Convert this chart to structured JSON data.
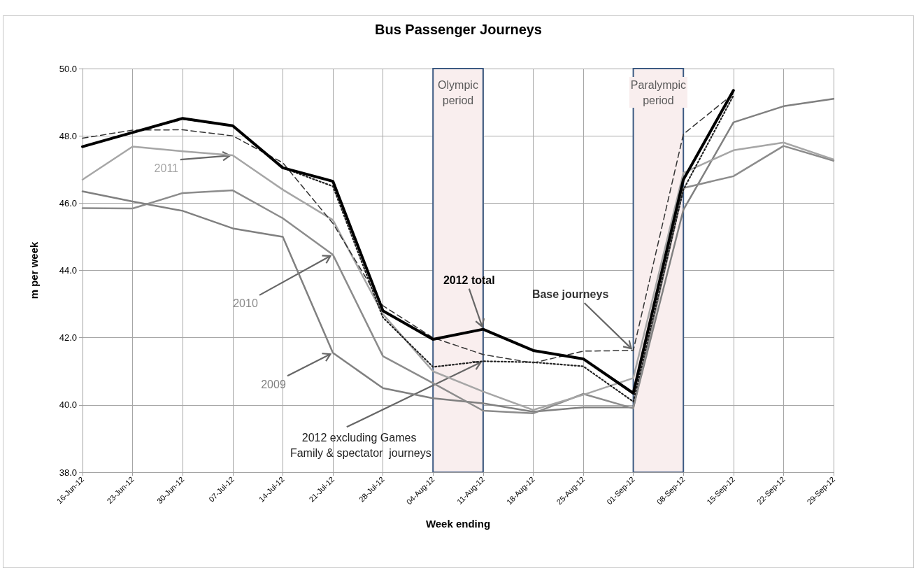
{
  "chart_data": {
    "type": "line",
    "title": "Bus Passenger Journeys",
    "xlabel": "Week ending",
    "ylabel": "m per week",
    "categories": [
      "16-Jun-12",
      "23-Jun-12",
      "30-Jun-12",
      "07-Jul-12",
      "14-Jul-12",
      "21-Jul-12",
      "28-Jul-12",
      "04-Aug-12",
      "11-Aug-12",
      "18-Aug-12",
      "25-Aug-12",
      "01-Sep-12",
      "08-Sep-12",
      "15-Sep-12",
      "22-Sep-12",
      "29-Sep-12"
    ],
    "series": [
      {
        "name": "2012 total",
        "color": "#000000",
        "line_style": "solid",
        "values": [
          47.68,
          48.1,
          48.52,
          48.3,
          47.05,
          46.65,
          42.8,
          41.95,
          42.25,
          41.62,
          41.37,
          40.35,
          46.7,
          49.35,
          null,
          null
        ]
      },
      {
        "name": "Base journeys",
        "color": "#333333",
        "line_style": "dashed",
        "values": [
          47.93,
          48.17,
          48.18,
          48.0,
          47.2,
          45.4,
          42.95,
          42.0,
          41.5,
          41.25,
          41.6,
          41.62,
          48.05,
          49.25,
          null,
          null
        ]
      },
      {
        "name": "2012 excluding Games Family & spectator  journeys",
        "color": "#222222",
        "line_style": "dotted",
        "values": [
          47.68,
          48.1,
          48.5,
          48.3,
          47.05,
          46.5,
          42.6,
          41.13,
          41.3,
          41.27,
          41.15,
          40.1,
          46.4,
          49.2,
          null,
          null
        ]
      },
      {
        "name": "2011",
        "color": "#a6a6a6",
        "line_style": "solid",
        "values": [
          46.7,
          47.68,
          47.54,
          47.42,
          46.4,
          45.5,
          42.7,
          41.0,
          40.4,
          39.85,
          40.3,
          40.8,
          46.9,
          47.57,
          47.8,
          47.3
        ]
      },
      {
        "name": "2010",
        "color": "#8c8c8c",
        "line_style": "solid",
        "values": [
          45.85,
          45.84,
          46.3,
          46.38,
          45.55,
          44.47,
          41.45,
          40.65,
          39.83,
          39.75,
          40.33,
          39.9,
          46.45,
          46.8,
          47.7,
          47.26
        ]
      },
      {
        "name": "2009",
        "color": "#808080",
        "line_style": "solid",
        "values": [
          46.35,
          46.05,
          45.77,
          45.25,
          45.0,
          41.55,
          40.5,
          40.2,
          40.05,
          39.8,
          39.93,
          39.93,
          45.8,
          48.4,
          48.88,
          49.1
        ]
      }
    ],
    "ylim": [
      38,
      50
    ],
    "yticks": [
      {
        "value": 38,
        "label": "38.0"
      },
      {
        "value": 40,
        "label": "40.0"
      },
      {
        "value": 42,
        "label": "42.0"
      },
      {
        "value": 44,
        "label": "44.0"
      },
      {
        "value": 46,
        "label": "46.0"
      },
      {
        "value": 48,
        "label": "48.0"
      },
      {
        "value": 50,
        "label": "50.0"
      }
    ],
    "bands": [
      {
        "axis": "x",
        "from": "04-Aug-12",
        "to": "11-Aug-12",
        "label": "Olympic period",
        "color": "#f9eeee"
      },
      {
        "axis": "x",
        "from": "01-Sep-12",
        "to": "08-Sep-12",
        "label": "Paralympic period",
        "color": "#f9eeee"
      }
    ],
    "grid": true,
    "legend": false,
    "marker": "none"
  }
}
